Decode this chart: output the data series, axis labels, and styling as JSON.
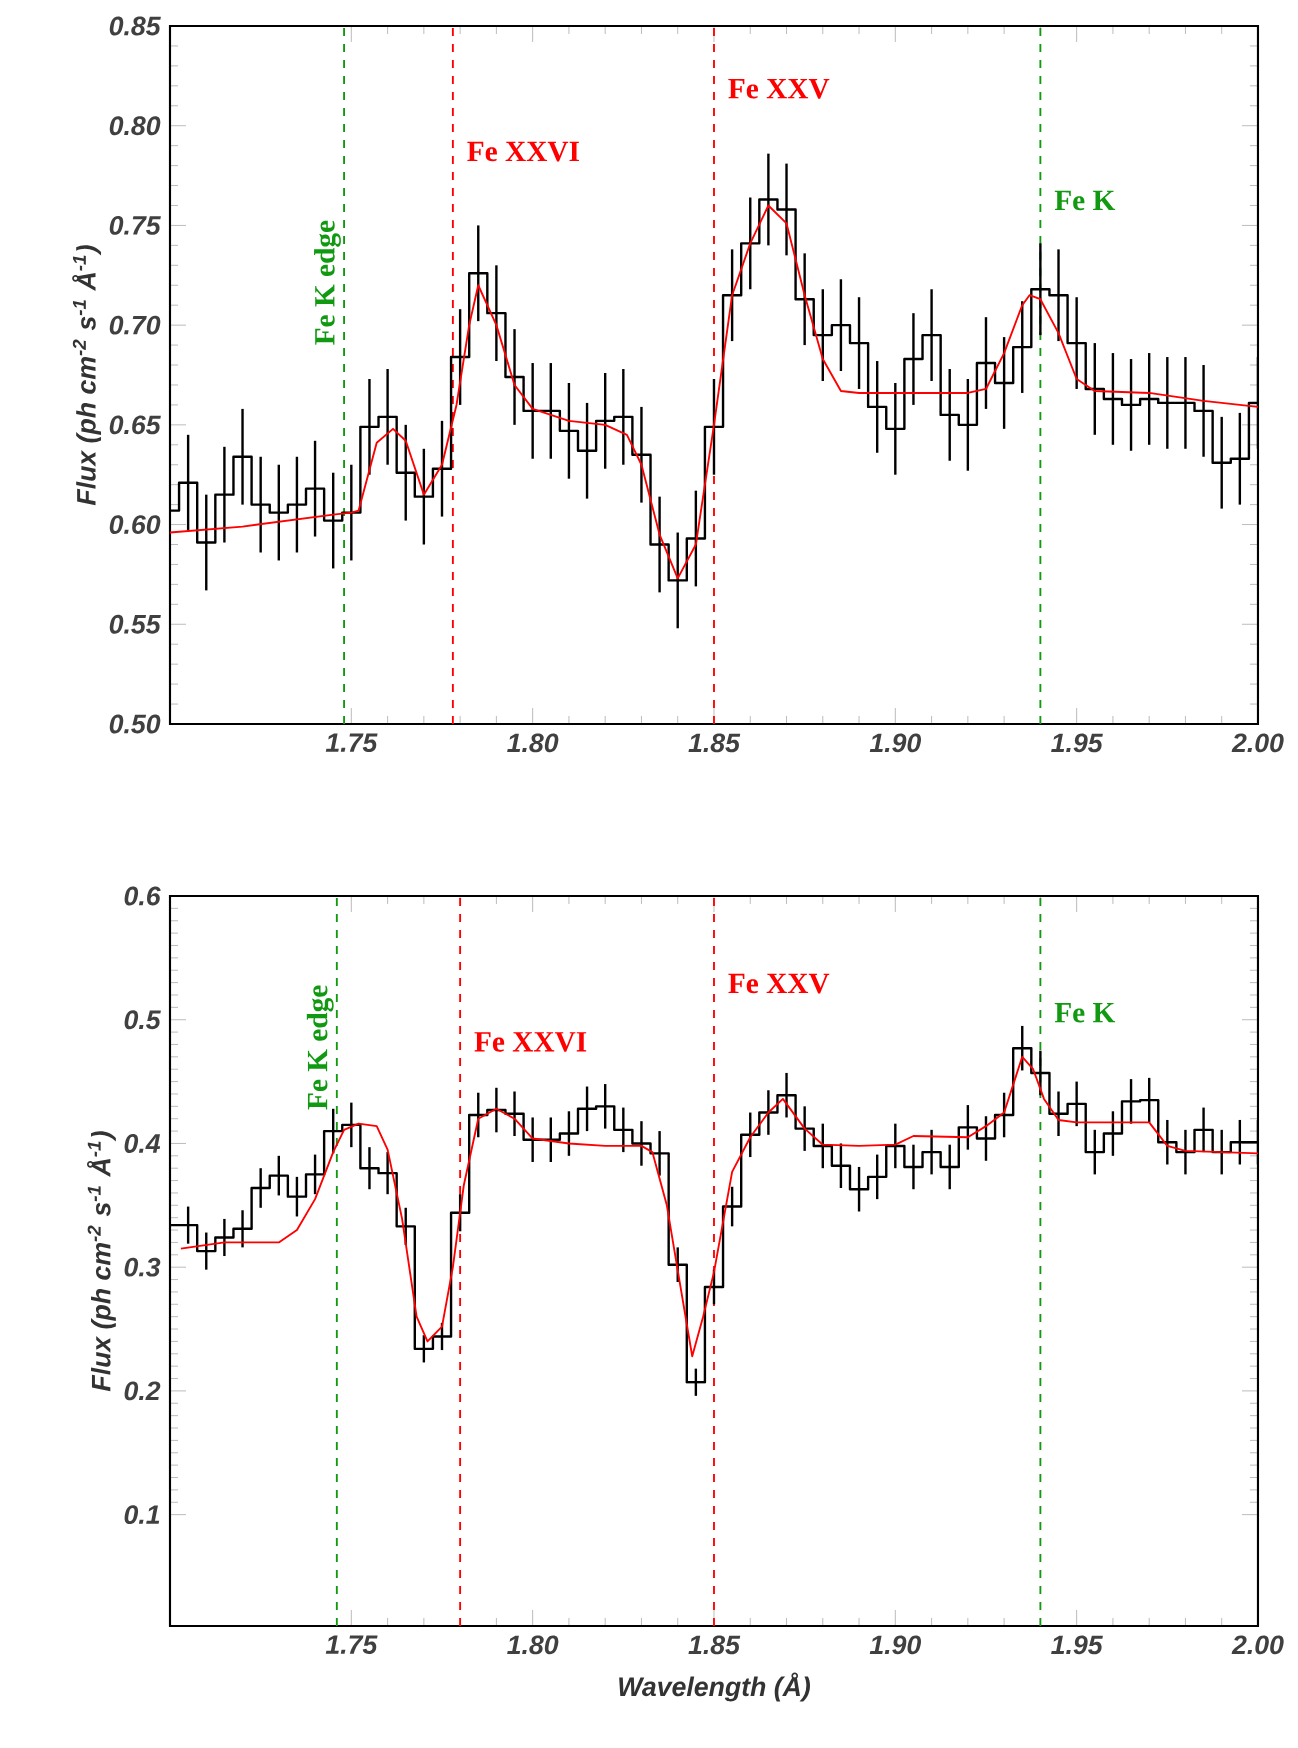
{
  "chart_data": [
    {
      "type": "step",
      "ylabel": "Flux (ph cm$^{-2}$ s$^{-1}$ Å$^{-1}$)",
      "xlim": [
        1.7,
        2.0
      ],
      "ylim": [
        0.5,
        0.85
      ],
      "xticks": [
        {
          "value": 1.75,
          "label": "1.75"
        },
        {
          "value": 1.8,
          "label": "1.80"
        },
        {
          "value": 1.85,
          "label": "1.85"
        },
        {
          "value": 1.9,
          "label": "1.90"
        },
        {
          "value": 1.95,
          "label": "1.95"
        },
        {
          "value": 2.0,
          "label": "2.00"
        }
      ],
      "yticks": [
        {
          "value": 0.5,
          "label": "0.50"
        },
        {
          "value": 0.55,
          "label": "0.55"
        },
        {
          "value": 0.6,
          "label": "0.60"
        },
        {
          "value": 0.65,
          "label": "0.65"
        },
        {
          "value": 0.7,
          "label": "0.70"
        },
        {
          "value": 0.75,
          "label": "0.75"
        },
        {
          "value": 0.8,
          "label": "0.80"
        },
        {
          "value": 0.85,
          "label": "0.85"
        }
      ],
      "series": [
        {
          "color": "#000000",
          "x": [
            1.7,
            1.705,
            1.71,
            1.715,
            1.72,
            1.725,
            1.73,
            1.735,
            1.74,
            1.745,
            1.75,
            1.755,
            1.76,
            1.765,
            1.77,
            1.775,
            1.78,
            1.785,
            1.79,
            1.795,
            1.8,
            1.805,
            1.81,
            1.815,
            1.82,
            1.825,
            1.83,
            1.835,
            1.84,
            1.845,
            1.85,
            1.855,
            1.86,
            1.865,
            1.87,
            1.875,
            1.88,
            1.885,
            1.89,
            1.895,
            1.9,
            1.905,
            1.91,
            1.915,
            1.92,
            1.925,
            1.93,
            1.935,
            1.94,
            1.945,
            1.95,
            1.955,
            1.96,
            1.965,
            1.97,
            1.975,
            1.98,
            1.985,
            1.99,
            1.995,
            2.0
          ],
          "values": [
            0.607,
            0.621,
            0.591,
            0.615,
            0.634,
            0.61,
            0.606,
            0.61,
            0.618,
            0.602,
            0.606,
            0.649,
            0.654,
            0.626,
            0.614,
            0.628,
            0.684,
            0.726,
            0.706,
            0.674,
            0.657,
            0.657,
            0.647,
            0.637,
            0.652,
            0.654,
            0.635,
            0.59,
            0.572,
            0.593,
            0.649,
            0.715,
            0.741,
            0.763,
            0.758,
            0.713,
            0.695,
            0.7,
            0.691,
            0.659,
            0.648,
            0.683,
            0.695,
            0.655,
            0.65,
            0.681,
            0.671,
            0.689,
            0.718,
            0.715,
            0.691,
            0.668,
            0.663,
            0.66,
            0.663,
            0.661,
            0.661,
            0.657,
            0.631,
            0.633,
            0.661
          ],
          "errors": [
            null,
            0.024,
            0.024,
            0.024,
            0.024,
            0.024,
            0.024,
            0.024,
            0.024,
            0.024,
            0.024,
            0.024,
            0.024,
            0.024,
            0.024,
            0.024,
            0.024,
            0.024,
            0.024,
            0.024,
            0.024,
            0.024,
            0.024,
            0.024,
            0.024,
            0.024,
            0.024,
            0.024,
            0.024,
            0.024,
            0.024,
            0.023,
            0.023,
            0.023,
            0.023,
            0.023,
            0.023,
            0.023,
            0.023,
            0.023,
            0.023,
            0.023,
            0.023,
            0.023,
            0.023,
            0.023,
            0.023,
            0.023,
            0.023,
            0.023,
            0.023,
            0.023,
            0.023,
            0.023,
            0.023,
            0.023,
            0.023,
            0.023,
            0.023,
            0.023,
            0.023
          ]
        },
        {
          "type": "line",
          "color": "#ff0000",
          "x": [
            1.7,
            1.72,
            1.745,
            1.75,
            1.752,
            1.757,
            1.7615,
            1.765,
            1.77,
            1.775,
            1.779,
            1.7825,
            1.785,
            1.79,
            1.795,
            1.8,
            1.81,
            1.82,
            1.826,
            1.83,
            1.835,
            1.84,
            1.845,
            1.85,
            1.855,
            1.86,
            1.865,
            1.87,
            1.875,
            1.88,
            1.885,
            1.89,
            1.92,
            1.925,
            1.93,
            1.935,
            1.937,
            1.94,
            1.945,
            1.95,
            1.955,
            1.97,
            1.985,
            2.0
          ],
          "values": [
            0.596,
            0.599,
            0.605,
            0.606,
            0.607,
            0.641,
            0.648,
            0.642,
            0.615,
            0.63,
            0.66,
            0.7,
            0.72,
            0.7,
            0.67,
            0.658,
            0.652,
            0.65,
            0.645,
            0.63,
            0.595,
            0.573,
            0.59,
            0.65,
            0.715,
            0.741,
            0.76,
            0.751,
            0.715,
            0.683,
            0.667,
            0.666,
            0.666,
            0.668,
            0.686,
            0.71,
            0.715,
            0.713,
            0.696,
            0.673,
            0.667,
            0.666,
            0.662,
            0.659
          ]
        }
      ],
      "ref_lines": [
        {
          "axis": "x",
          "value": 1.748,
          "label": "Fe K edge",
          "color": "#119911",
          "line_style": "dashed"
        },
        {
          "axis": "x",
          "value": 1.778,
          "label": "Fe XXVI",
          "color": "#ff0000",
          "line_style": "dashed"
        },
        {
          "axis": "x",
          "value": 1.85,
          "label": "Fe XXV",
          "color": "#ff0000",
          "line_style": "dashed"
        },
        {
          "axis": "x",
          "value": 1.94,
          "label": "Fe K",
          "color": "#119911",
          "line_style": "dashed"
        }
      ]
    },
    {
      "type": "step",
      "xlabel": "Wavelength (Å)",
      "ylabel": "Flux (ph cm$^{-2}$ s$^{-1}$ Å$^{-1}$)",
      "xlim": [
        1.7,
        2.0
      ],
      "ylim": [
        0.01,
        0.6
      ],
      "xticks": [
        {
          "value": 1.75,
          "label": "1.75"
        },
        {
          "value": 1.8,
          "label": "1.80"
        },
        {
          "value": 1.85,
          "label": "1.85"
        },
        {
          "value": 1.9,
          "label": "1.90"
        },
        {
          "value": 1.95,
          "label": "1.95"
        },
        {
          "value": 2.0,
          "label": "2.00"
        }
      ],
      "yticks": [
        0.1,
        0.2,
        0.3,
        0.4,
        0.5,
        0.6
      ],
      "series": [
        {
          "color": "#000000",
          "x": [
            1.7,
            1.705,
            1.71,
            1.715,
            1.72,
            1.725,
            1.73,
            1.735,
            1.74,
            1.745,
            1.75,
            1.755,
            1.76,
            1.765,
            1.77,
            1.775,
            1.78,
            1.785,
            1.79,
            1.795,
            1.8,
            1.805,
            1.81,
            1.815,
            1.82,
            1.825,
            1.83,
            1.835,
            1.84,
            1.845,
            1.85,
            1.855,
            1.86,
            1.865,
            1.87,
            1.875,
            1.88,
            1.885,
            1.89,
            1.895,
            1.9,
            1.905,
            1.91,
            1.915,
            1.92,
            1.925,
            1.93,
            1.935,
            1.94,
            1.945,
            1.95,
            1.955,
            1.96,
            1.965,
            1.97,
            1.975,
            1.98,
            1.985,
            1.99,
            1.995,
            2.0
          ],
          "values": [
            0.334,
            0.334,
            0.313,
            0.324,
            0.331,
            0.364,
            0.374,
            0.357,
            0.375,
            0.41,
            0.415,
            0.38,
            0.376,
            0.333,
            0.234,
            0.244,
            0.344,
            0.423,
            0.427,
            0.424,
            0.403,
            0.403,
            0.408,
            0.428,
            0.43,
            0.411,
            0.4,
            0.392,
            0.302,
            0.207,
            0.284,
            0.349,
            0.407,
            0.425,
            0.439,
            0.412,
            0.398,
            0.382,
            0.363,
            0.373,
            0.398,
            0.381,
            0.393,
            0.381,
            0.413,
            0.404,
            0.423,
            0.477,
            0.457,
            0.424,
            0.432,
            0.393,
            0.408,
            0.434,
            0.435,
            0.401,
            0.393,
            0.411,
            0.393,
            0.401,
            0.401
          ],
          "errors": [
            null,
            0.015,
            0.015,
            0.015,
            0.015,
            0.016,
            0.016,
            0.016,
            0.016,
            0.018,
            0.018,
            0.017,
            0.017,
            0.015,
            0.011,
            0.011,
            0.015,
            0.018,
            0.018,
            0.018,
            0.018,
            0.018,
            0.018,
            0.018,
            0.018,
            0.018,
            0.018,
            0.018,
            0.014,
            0.011,
            0.014,
            0.016,
            0.018,
            0.018,
            0.018,
            0.018,
            0.018,
            0.018,
            0.018,
            0.018,
            0.018,
            0.018,
            0.018,
            0.018,
            0.018,
            0.018,
            0.018,
            0.018,
            0.018,
            0.018,
            0.018,
            0.018,
            0.018,
            0.018,
            0.018,
            0.018,
            0.018,
            0.018,
            0.018,
            0.018,
            0.018
          ]
        },
        {
          "type": "line",
          "color": "#ff0000",
          "x": [
            1.703,
            1.715,
            1.73,
            1.735,
            1.74,
            1.745,
            1.748,
            1.752,
            1.757,
            1.76,
            1.764,
            1.768,
            1.771,
            1.775,
            1.778,
            1.781,
            1.785,
            1.79,
            1.795,
            1.8,
            1.81,
            1.82,
            1.83,
            1.833,
            1.837,
            1.841,
            1.844,
            1.847,
            1.85,
            1.855,
            1.86,
            1.865,
            1.869,
            1.875,
            1.88,
            1.89,
            1.9,
            1.905,
            1.92,
            1.925,
            1.93,
            1.935,
            1.938,
            1.941,
            1.945,
            1.95,
            1.97,
            1.975,
            1.98,
            2.0
          ],
          "values": [
            0.315,
            0.32,
            0.32,
            0.33,
            0.355,
            0.393,
            0.411,
            0.416,
            0.414,
            0.395,
            0.339,
            0.26,
            0.24,
            0.252,
            0.3,
            0.366,
            0.42,
            0.428,
            0.42,
            0.404,
            0.4,
            0.398,
            0.398,
            0.393,
            0.35,
            0.28,
            0.228,
            0.26,
            0.296,
            0.377,
            0.405,
            0.425,
            0.436,
            0.412,
            0.399,
            0.398,
            0.399,
            0.406,
            0.405,
            0.414,
            0.425,
            0.47,
            0.46,
            0.436,
            0.419,
            0.417,
            0.417,
            0.398,
            0.394,
            0.392
          ]
        }
      ],
      "ref_lines": [
        {
          "axis": "x",
          "value": 1.746,
          "label": "Fe K edge",
          "color": "#119911",
          "line_style": "dashed"
        },
        {
          "axis": "x",
          "value": 1.78,
          "label": "Fe XXVI",
          "color": "#ff0000",
          "line_style": "dashed"
        },
        {
          "axis": "x",
          "value": 1.85,
          "label": "Fe XXV",
          "color": "#ff0000",
          "line_style": "dashed"
        },
        {
          "axis": "x",
          "value": 1.94,
          "label": "Fe K",
          "color": "#119911",
          "line_style": "dashed"
        }
      ]
    }
  ]
}
